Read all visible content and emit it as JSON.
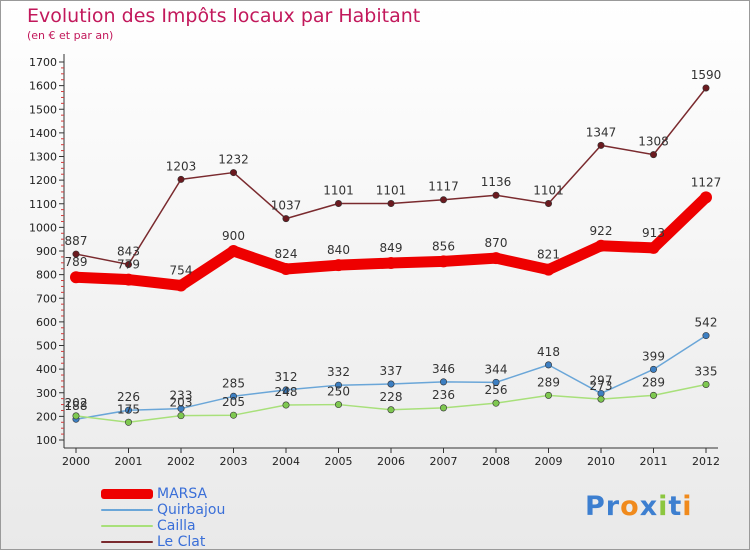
{
  "header": {
    "title": "Evolution des Impôts locaux par Habitant",
    "subtitle": "(en € et par an)"
  },
  "logo": {
    "letters": [
      {
        "char": "P",
        "color": "#3d7fd0"
      },
      {
        "char": "r",
        "color": "#3d7fd0"
      },
      {
        "char": "o",
        "color": "#f08a1c"
      },
      {
        "char": "x",
        "color": "#3d7fd0"
      },
      {
        "char": "i",
        "color": "#8cc63f"
      },
      {
        "char": "t",
        "color": "#3d7fd0"
      },
      {
        "char": "i",
        "color": "#f08a1c"
      }
    ]
  },
  "chart_data": {
    "type": "line",
    "title": "Evolution des Impôts locaux par Habitant",
    "subtitle": "(en € et par an)",
    "xlabel": "",
    "ylabel": "",
    "x": [
      "2000",
      "2001",
      "2002",
      "2003",
      "2004",
      "2005",
      "2006",
      "2007",
      "2008",
      "2009",
      "2010",
      "2011",
      "2012"
    ],
    "ylim": [
      100,
      1700
    ],
    "yticks": [
      100,
      200,
      300,
      400,
      500,
      600,
      700,
      800,
      900,
      1000,
      1100,
      1200,
      1300,
      1400,
      1500,
      1600,
      1700
    ],
    "grid": false,
    "legend_position": "bottom-left",
    "series": [
      {
        "name": "Le Clat",
        "color": "#7a2a2e",
        "marker": "#6b1a1f",
        "values": [
          887,
          843,
          1203,
          1232,
          1037,
          1101,
          1101,
          1117,
          1136,
          1101,
          1347,
          1308,
          1590
        ]
      },
      {
        "name": "Quirbajou",
        "color": "#6aa6d8",
        "marker": "#3d7fc2",
        "values": [
          188,
          226,
          233,
          285,
          312,
          332,
          337,
          346,
          344,
          418,
          297,
          399,
          542
        ]
      },
      {
        "name": "Cailla",
        "color": "#a8e07a",
        "marker": "#7ec850",
        "values": [
          202,
          175,
          203,
          205,
          248,
          250,
          228,
          236,
          256,
          289,
          273,
          289,
          335
        ]
      },
      {
        "name": "MARSA",
        "color": "#ee0000",
        "marker": "#ee0000",
        "values": [
          789,
          779,
          754,
          900,
          824,
          840,
          849,
          856,
          870,
          821,
          922,
          913,
          1127
        ]
      }
    ],
    "legend_order": [
      "MARSA",
      "Quirbajou",
      "Cailla",
      "Le Clat"
    ]
  }
}
